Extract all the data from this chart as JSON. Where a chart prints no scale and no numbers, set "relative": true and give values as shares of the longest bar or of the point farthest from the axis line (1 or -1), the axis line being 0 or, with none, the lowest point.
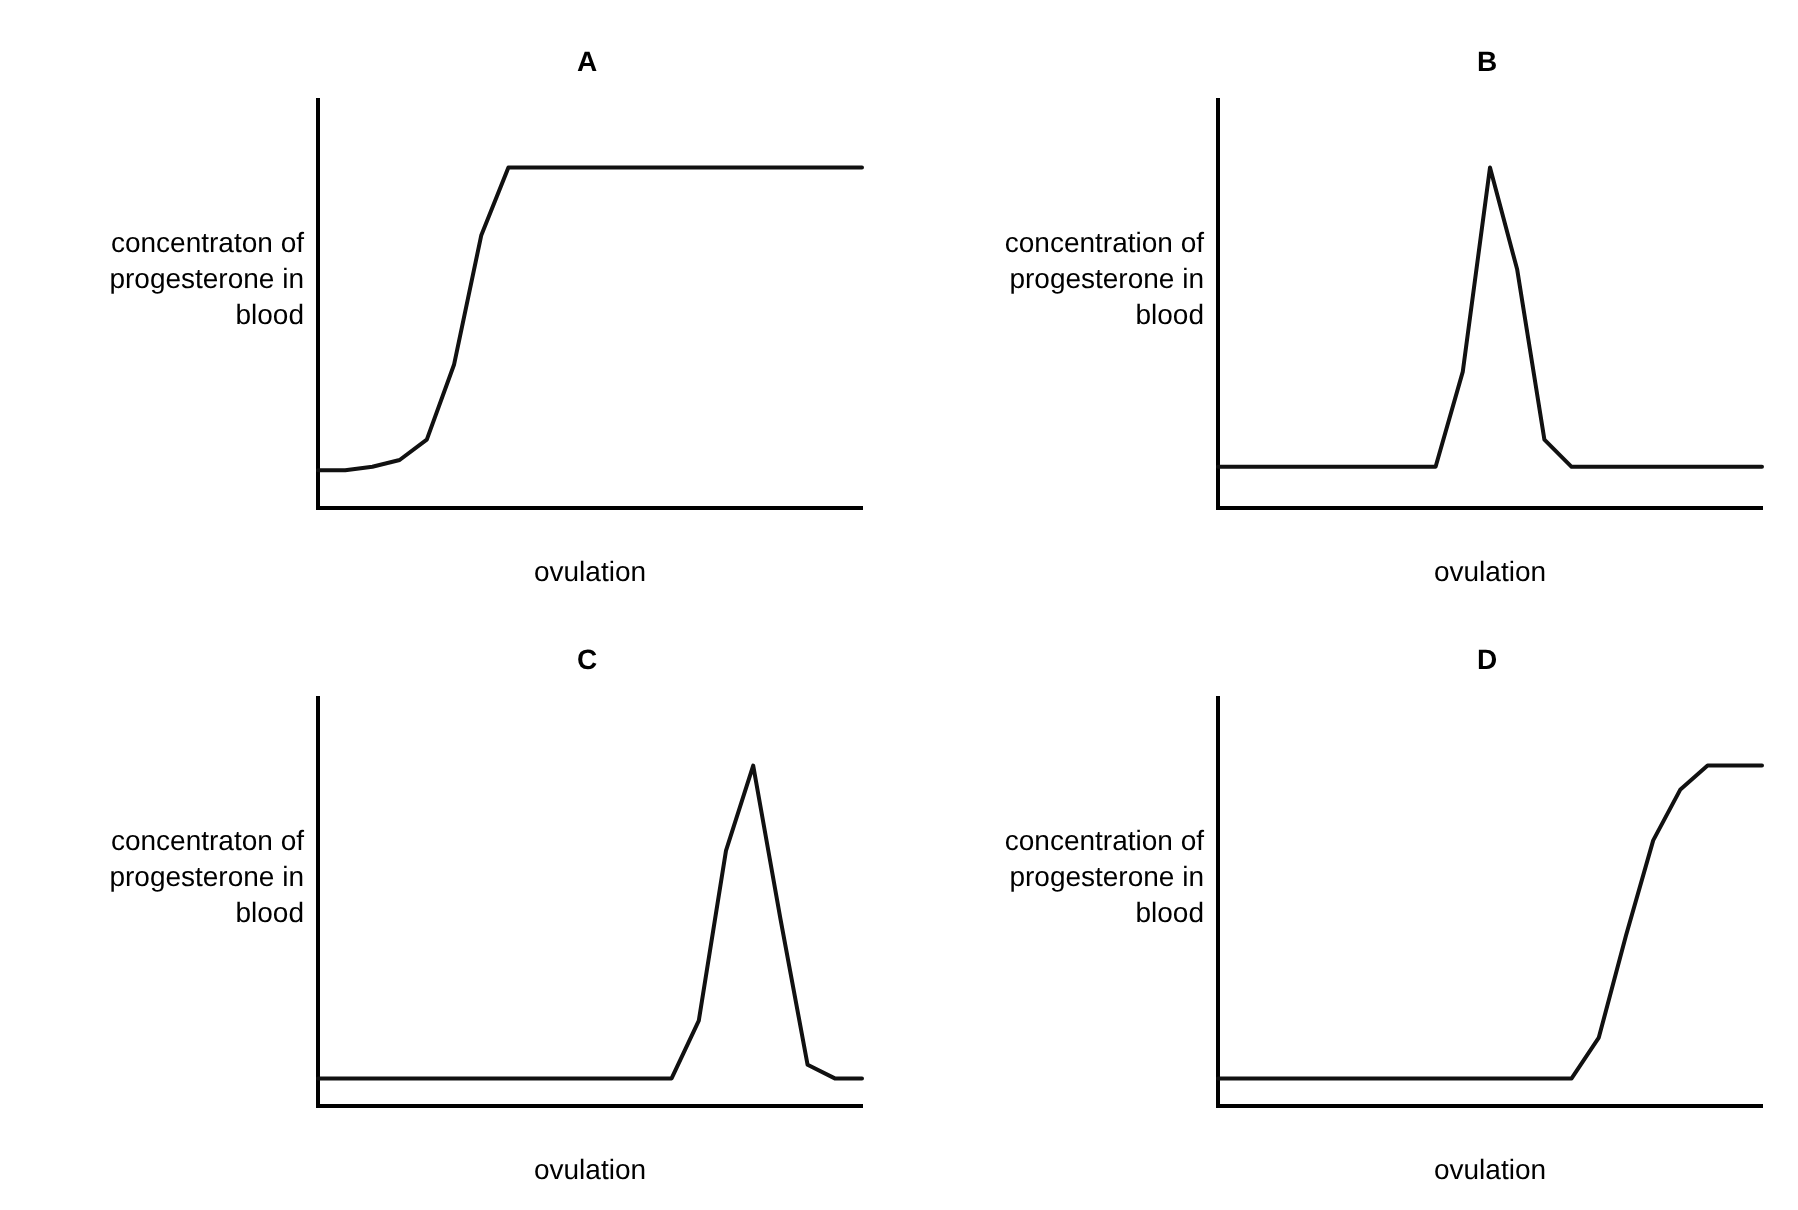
{
  "chart_data": [
    {
      "type": "line",
      "title": "A",
      "ylabel": "concentraton of progesterone in blood",
      "xlabel": "ovulation",
      "relative": true,
      "grid": false,
      "legend": false,
      "marker": "none",
      "line_style": "solid",
      "categories": [
        null,
        null,
        null,
        null,
        null,
        null,
        null,
        null,
        null,
        null,
        null,
        null,
        null,
        null,
        null,
        null,
        null,
        null,
        null,
        null,
        null
      ],
      "series": [
        {
          "color": "#111111",
          "values": [
            0.11,
            0.11,
            0.12,
            0.14,
            0.2,
            0.42,
            0.8,
            1,
            1,
            1,
            1,
            1,
            1,
            1,
            1,
            1,
            1,
            1,
            1,
            1,
            1
          ]
        }
      ]
    },
    {
      "type": "line",
      "title": "B",
      "ylabel": "concentration of progesterone in blood",
      "xlabel": "ovulation",
      "relative": true,
      "grid": false,
      "legend": false,
      "marker": "none",
      "line_style": "solid",
      "categories": [
        null,
        null,
        null,
        null,
        null,
        null,
        null,
        null,
        null,
        null,
        null,
        null,
        null,
        null,
        null,
        null,
        null,
        null,
        null,
        null,
        null
      ],
      "series": [
        {
          "color": "#111111",
          "values": [
            0.12,
            0.12,
            0.12,
            0.12,
            0.12,
            0.12,
            0.12,
            0.12,
            0.12,
            0.4,
            1,
            0.7,
            0.2,
            0.12,
            0.12,
            0.12,
            0.12,
            0.12,
            0.12,
            0.12,
            0.12
          ]
        }
      ]
    },
    {
      "type": "line",
      "title": "C",
      "ylabel": "concentraton of progesterone in blood",
      "xlabel": "ovulation",
      "relative": true,
      "grid": false,
      "legend": false,
      "marker": "none",
      "line_style": "solid",
      "categories": [
        null,
        null,
        null,
        null,
        null,
        null,
        null,
        null,
        null,
        null,
        null,
        null,
        null,
        null,
        null,
        null,
        null,
        null,
        null,
        null,
        null
      ],
      "series": [
        {
          "color": "#111111",
          "values": [
            0.08,
            0.08,
            0.08,
            0.08,
            0.08,
            0.08,
            0.08,
            0.08,
            0.08,
            0.08,
            0.08,
            0.08,
            0.08,
            0.08,
            0.25,
            0.75,
            1,
            0.55,
            0.12,
            0.08,
            0.08
          ]
        }
      ]
    },
    {
      "type": "line",
      "title": "D",
      "ylabel": "concentration of progesterone in blood",
      "xlabel": "ovulation",
      "relative": true,
      "grid": false,
      "legend": false,
      "marker": "none",
      "line_style": "solid",
      "categories": [
        null,
        null,
        null,
        null,
        null,
        null,
        null,
        null,
        null,
        null,
        null,
        null,
        null,
        null,
        null,
        null,
        null,
        null,
        null,
        null,
        null
      ],
      "series": [
        {
          "color": "#111111",
          "values": [
            0.08,
            0.08,
            0.08,
            0.08,
            0.08,
            0.08,
            0.08,
            0.08,
            0.08,
            0.08,
            0.08,
            0.08,
            0.08,
            0.08,
            0.2,
            0.5,
            0.78,
            0.93,
            1,
            1,
            1
          ]
        }
      ]
    }
  ]
}
